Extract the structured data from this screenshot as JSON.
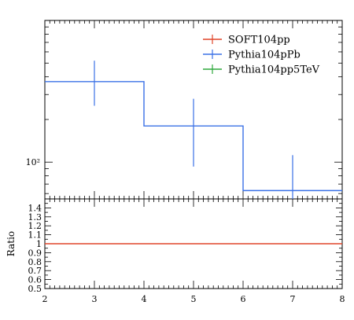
{
  "chart_data": [
    {
      "type": "line",
      "panel": "main",
      "x_edges": [
        2,
        4,
        6,
        8
      ],
      "x_range": [
        2,
        8
      ],
      "y_scale": "log",
      "y_range": [
        55,
        1000
      ],
      "y_tick_label": "10²",
      "y_tick_value": 100,
      "legend_placement": "top-right",
      "series": [
        {
          "name": "SOFT104pp",
          "color": "#e0452a",
          "bins": []
        },
        {
          "name": "Pythia104pPb",
          "color": "#3a70e6",
          "bins": [
            {
              "xlo": 2,
              "xhi": 4,
              "xc": 3,
              "y": 370,
              "ylo": 250,
              "yhi": 520
            },
            {
              "xlo": 4,
              "xhi": 6,
              "xc": 5,
              "y": 180,
              "ylo": 93,
              "yhi": 280
            },
            {
              "xlo": 6,
              "xhi": 8,
              "xc": 7,
              "y": 63,
              "ylo": 0,
              "yhi": 112
            }
          ]
        },
        {
          "name": "Pythia104pp5TeV",
          "color": "#2ea83c",
          "bins": []
        }
      ]
    },
    {
      "type": "line",
      "panel": "ratio",
      "ylabel": "Ratio",
      "x_range": [
        2,
        8
      ],
      "y_range": [
        0.5,
        1.5
      ],
      "x_ticks": [
        "2",
        "3",
        "4",
        "5",
        "6",
        "7",
        "8"
      ],
      "y_ticks": [
        "0.5",
        "0.6",
        "0.7",
        "0.8",
        "0.9",
        "1",
        "1.1",
        "1.2",
        "1.3",
        "1.4"
      ],
      "series": [
        {
          "name": "ratio",
          "color": "#e0452a",
          "x": [
            2,
            8
          ],
          "y": [
            1,
            1
          ]
        }
      ]
    }
  ]
}
